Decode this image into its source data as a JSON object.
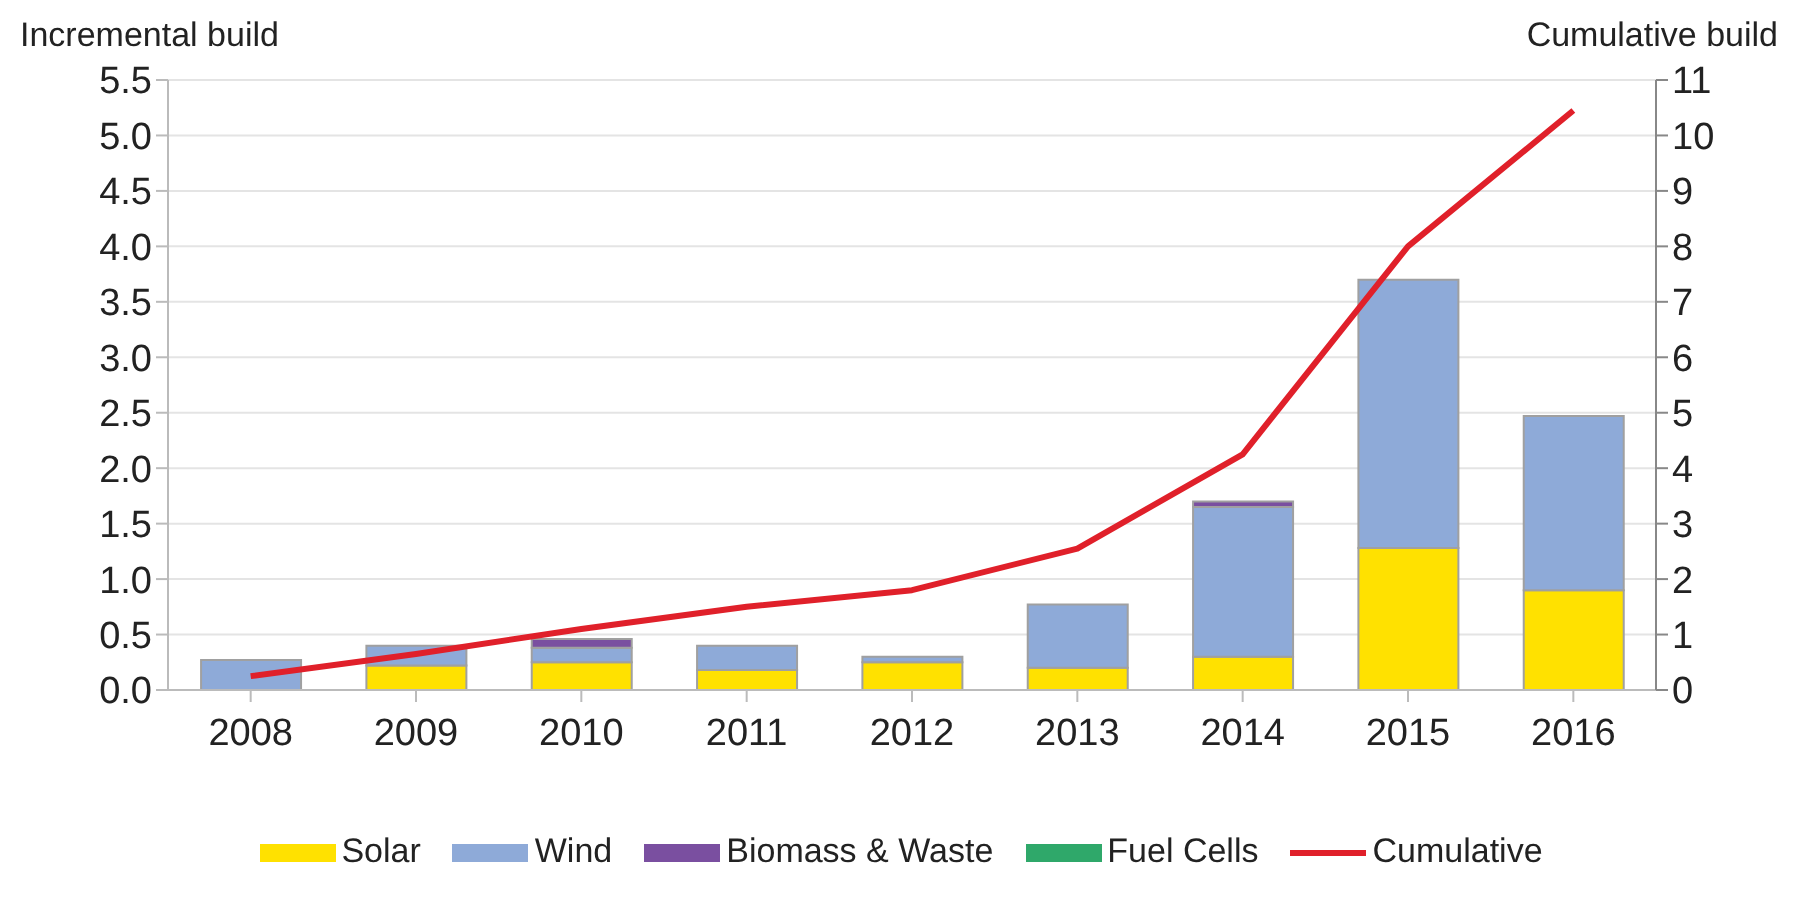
{
  "chart_data": {
    "type": "bar",
    "stacked": true,
    "ylabel": "Incremental build",
    "y2label": "Cumulative build",
    "categories": [
      "2008",
      "2009",
      "2010",
      "2011",
      "2012",
      "2013",
      "2014",
      "2015",
      "2016"
    ],
    "series": [
      {
        "name": "Solar",
        "color": "#ffe100",
        "values": [
          0,
          0.22,
          0.25,
          0.18,
          0.25,
          0.2,
          0.3,
          1.28,
          0.9
        ]
      },
      {
        "name": "Wind",
        "color": "#8eaad8",
        "values": [
          0.27,
          0.18,
          0.13,
          0.22,
          0.05,
          0.57,
          1.35,
          2.42,
          1.57
        ]
      },
      {
        "name": "Biomass & Waste",
        "color": "#7a4fa0",
        "values": [
          0,
          0,
          0.08,
          0,
          0,
          0,
          0.05,
          0,
          0
        ]
      },
      {
        "name": "Fuel Cells",
        "color": "#2fa86a",
        "values": [
          0,
          0,
          0,
          0,
          0,
          0,
          0,
          0,
          0
        ]
      },
      {
        "name": "Cumulative",
        "type": "line",
        "axis": "y2",
        "color": "#e0202a",
        "values": [
          0.25,
          0.65,
          1.1,
          1.5,
          1.8,
          2.55,
          4.25,
          8.0,
          10.45
        ]
      }
    ],
    "ylim": [
      0,
      5.5
    ],
    "yticks": [
      {
        "value": 0,
        "label": "0.0"
      },
      {
        "value": 0.5,
        "label": "0.5"
      },
      {
        "value": 1,
        "label": "1.0"
      },
      {
        "value": 1.5,
        "label": "1.5"
      },
      {
        "value": 2,
        "label": "2.0"
      },
      {
        "value": 2.5,
        "label": "2.5"
      },
      {
        "value": 3,
        "label": "3.0"
      },
      {
        "value": 3.5,
        "label": "3.5"
      },
      {
        "value": 4,
        "label": "4.0"
      },
      {
        "value": 4.5,
        "label": "4.5"
      },
      {
        "value": 5,
        "label": "5.0"
      },
      {
        "value": 5.5,
        "label": "5.5"
      }
    ],
    "y2lim": [
      0,
      11
    ],
    "y2ticks": [
      0,
      1,
      2,
      3,
      4,
      5,
      6,
      7,
      8,
      9,
      10,
      11
    ],
    "grid": "y",
    "legend": "bottom",
    "marker": "none",
    "line_style": "solid"
  }
}
